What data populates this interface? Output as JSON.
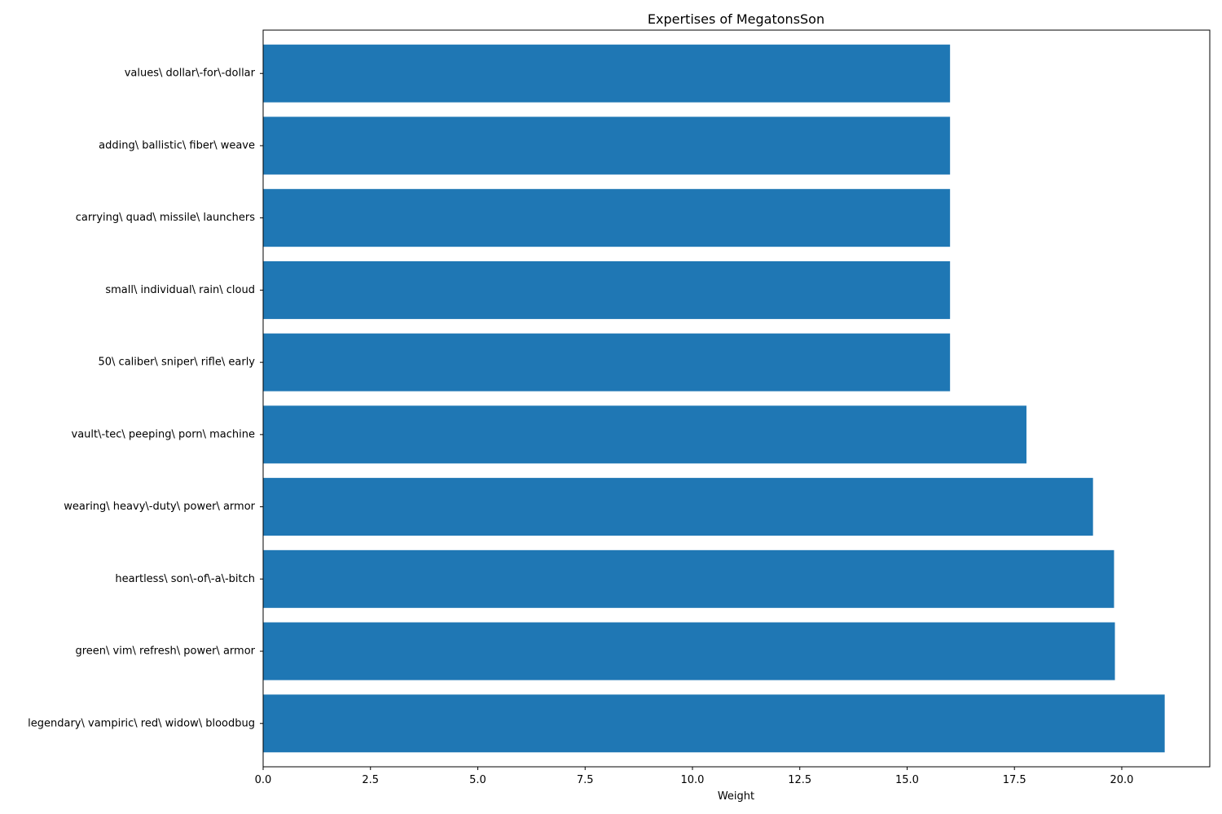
{
  "chart_data": {
    "type": "bar",
    "orientation": "horizontal",
    "title": "Expertises of MegatonsSon",
    "xlabel": "Weight",
    "ylabel": "",
    "xlim": [
      0,
      22.05
    ],
    "x_ticks": [
      "0.0",
      "2.5",
      "5.0",
      "7.5",
      "10.0",
      "12.5",
      "15.0",
      "17.5",
      "20.0"
    ],
    "categories": [
      "legendary\\ vampiric\\ red\\ widow\\ bloodbug",
      "green\\ vim\\ refresh\\ power\\ armor",
      "heartless\\ son\\-of\\-a\\-bitch",
      "wearing\\ heavy\\-duty\\ power\\ armor",
      "vault\\-tec\\ peeping\\ porn\\ machine",
      "50\\ caliber\\ sniper\\ rifle\\ early",
      "small\\ individual\\ rain\\ cloud",
      "carrying\\ quad\\ missile\\ launchers",
      "adding\\ ballistic\\ fiber\\ weave",
      "values\\ dollar\\-for\\-dollar"
    ],
    "values": [
      21.0,
      19.84,
      19.82,
      19.33,
      17.78,
      16.0,
      16.0,
      16.0,
      16.0,
      16.0
    ],
    "bar_color": "#1f77b4",
    "grid": false,
    "legend": "none"
  }
}
